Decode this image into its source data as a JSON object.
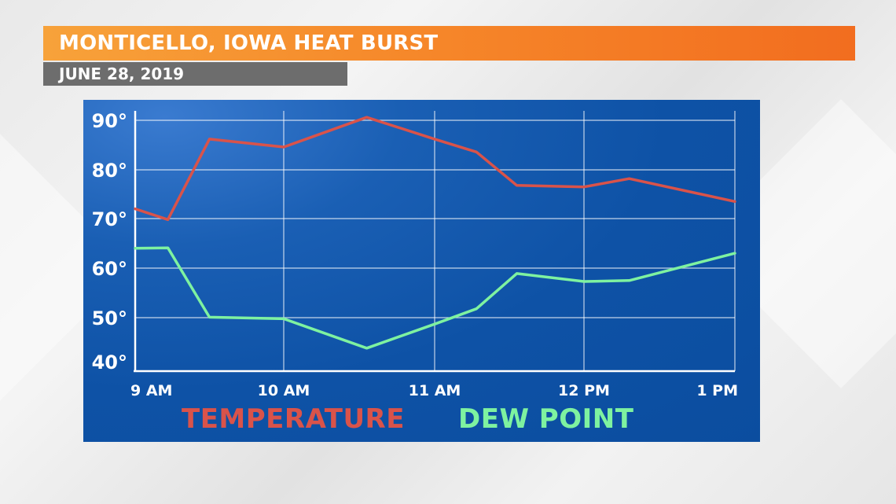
{
  "title": "MONTICELLO, IOWA HEAT BURST",
  "subtitle": "JUNE 28, 2019",
  "colors": {
    "title_bar": "#f6882a",
    "date_bar": "#6d6d6d",
    "panel": "#0e52a6",
    "temperature": "#d9534a",
    "dew_point": "#7ef2a0",
    "grid": "#ffffff"
  },
  "chart_data": {
    "type": "line",
    "x_tick_labels": [
      "9 AM",
      "10 AM",
      "11 AM",
      "12 PM",
      "1 PM"
    ],
    "y_tick_labels": [
      "90°",
      "80°",
      "70°",
      "60°",
      "50°",
      "40°"
    ],
    "xlim": [
      9,
      13
    ],
    "ylim": [
      40,
      91
    ],
    "grid": true,
    "legend_position": "bottom",
    "series": [
      {
        "name": "TEMPERATURE",
        "color": "#d9534a",
        "x": [
          9.0,
          9.22,
          9.5,
          10.0,
          10.55,
          11.0,
          11.28,
          11.55,
          12.0,
          12.3,
          13.0
        ],
        "y": [
          72,
          69.8,
          86.2,
          84.6,
          90.6,
          86.2,
          83.6,
          76.8,
          76.5,
          78.2,
          73.5
        ]
      },
      {
        "name": "DEW POINT",
        "color": "#7ef2a0",
        "x": [
          9.0,
          9.22,
          9.5,
          10.0,
          10.55,
          11.0,
          11.28,
          11.55,
          12.0,
          12.3,
          13.0
        ],
        "y": [
          64,
          64.1,
          50.1,
          49.8,
          44.3,
          48.8,
          51.8,
          58.9,
          57.3,
          57.5,
          63
        ]
      }
    ]
  }
}
